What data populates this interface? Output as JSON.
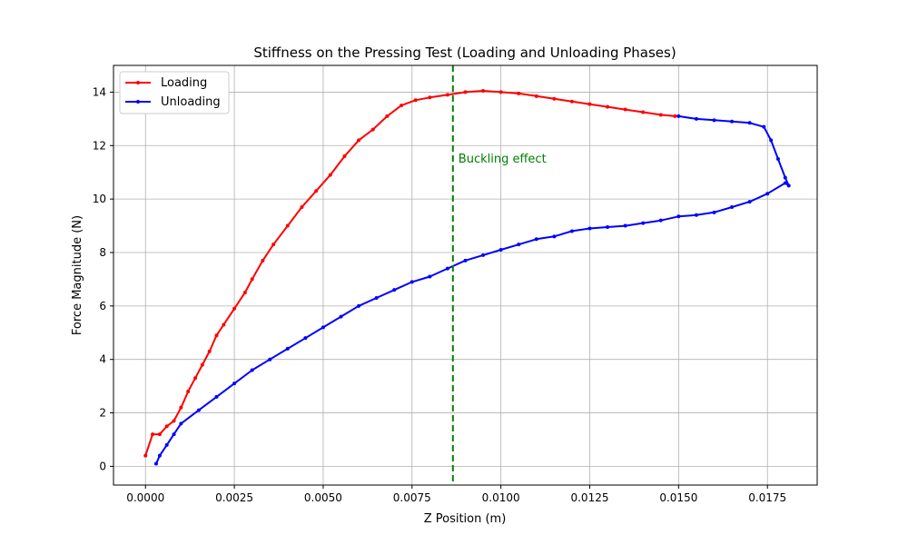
{
  "chart_data": {
    "type": "line",
    "title": "Stiffness on the Pressing Test (Loading and Unloading Phases)",
    "xlabel": "Z Position (m)",
    "ylabel": "Force Magnitude (N)",
    "xlim": [
      -0.0009,
      0.0189
    ],
    "ylim": [
      -0.7,
      15.0
    ],
    "xticks": [
      0.0,
      0.0025,
      0.005,
      0.0075,
      0.01,
      0.0125,
      0.015,
      0.0175
    ],
    "xtick_labels": [
      "0.0000",
      "0.0025",
      "0.0050",
      "0.0075",
      "0.0100",
      "0.0125",
      "0.0150",
      "0.0175"
    ],
    "yticks": [
      0,
      2,
      4,
      6,
      8,
      10,
      12,
      14
    ],
    "ytick_labels": [
      "0",
      "2",
      "4",
      "6",
      "8",
      "10",
      "12",
      "14"
    ],
    "grid": true,
    "legend_position": "top-left",
    "series": [
      {
        "name": "Loading",
        "color": "#ff0000",
        "points": [
          [
            0.0,
            0.4
          ],
          [
            0.0002,
            1.2
          ],
          [
            0.0004,
            1.2
          ],
          [
            0.0006,
            1.5
          ],
          [
            0.0008,
            1.7
          ],
          [
            0.001,
            2.2
          ],
          [
            0.0012,
            2.8
          ],
          [
            0.0014,
            3.3
          ],
          [
            0.0016,
            3.8
          ],
          [
            0.0018,
            4.3
          ],
          [
            0.002,
            4.9
          ],
          [
            0.0022,
            5.3
          ],
          [
            0.0025,
            5.9
          ],
          [
            0.0028,
            6.5
          ],
          [
            0.003,
            7.0
          ],
          [
            0.0033,
            7.7
          ],
          [
            0.0036,
            8.3
          ],
          [
            0.004,
            9.0
          ],
          [
            0.0044,
            9.7
          ],
          [
            0.0048,
            10.3
          ],
          [
            0.0052,
            10.9
          ],
          [
            0.0056,
            11.6
          ],
          [
            0.006,
            12.2
          ],
          [
            0.0064,
            12.6
          ],
          [
            0.0068,
            13.1
          ],
          [
            0.0072,
            13.5
          ],
          [
            0.0076,
            13.7
          ],
          [
            0.008,
            13.8
          ],
          [
            0.0085,
            13.9
          ],
          [
            0.009,
            14.0
          ],
          [
            0.0095,
            14.05
          ],
          [
            0.01,
            14.0
          ],
          [
            0.0105,
            13.95
          ],
          [
            0.011,
            13.85
          ],
          [
            0.0115,
            13.75
          ],
          [
            0.012,
            13.65
          ],
          [
            0.0125,
            13.55
          ],
          [
            0.013,
            13.45
          ],
          [
            0.0135,
            13.35
          ],
          [
            0.014,
            13.25
          ],
          [
            0.0145,
            13.15
          ],
          [
            0.0149,
            13.1
          ]
        ]
      },
      {
        "name": "Unloading",
        "color": "#0000ff",
        "points": [
          [
            0.015,
            13.1
          ],
          [
            0.0155,
            13.0
          ],
          [
            0.016,
            12.95
          ],
          [
            0.0165,
            12.9
          ],
          [
            0.017,
            12.85
          ],
          [
            0.0174,
            12.7
          ],
          [
            0.0176,
            12.2
          ],
          [
            0.0178,
            11.5
          ],
          [
            0.018,
            10.8
          ],
          [
            0.0181,
            10.5
          ],
          [
            0.018,
            10.6
          ],
          [
            0.0175,
            10.2
          ],
          [
            0.017,
            9.9
          ],
          [
            0.0165,
            9.7
          ],
          [
            0.016,
            9.5
          ],
          [
            0.0155,
            9.4
          ],
          [
            0.015,
            9.35
          ],
          [
            0.0145,
            9.2
          ],
          [
            0.014,
            9.1
          ],
          [
            0.0135,
            9.0
          ],
          [
            0.013,
            8.95
          ],
          [
            0.0125,
            8.9
          ],
          [
            0.012,
            8.8
          ],
          [
            0.0115,
            8.6
          ],
          [
            0.011,
            8.5
          ],
          [
            0.0105,
            8.3
          ],
          [
            0.01,
            8.1
          ],
          [
            0.0095,
            7.9
          ],
          [
            0.009,
            7.7
          ],
          [
            0.0085,
            7.4
          ],
          [
            0.008,
            7.1
          ],
          [
            0.0075,
            6.9
          ],
          [
            0.007,
            6.6
          ],
          [
            0.0065,
            6.3
          ],
          [
            0.006,
            6.0
          ],
          [
            0.0055,
            5.6
          ],
          [
            0.005,
            5.2
          ],
          [
            0.0045,
            4.8
          ],
          [
            0.004,
            4.4
          ],
          [
            0.0035,
            4.0
          ],
          [
            0.003,
            3.6
          ],
          [
            0.0025,
            3.1
          ],
          [
            0.002,
            2.6
          ],
          [
            0.0015,
            2.1
          ],
          [
            0.001,
            1.6
          ],
          [
            0.0008,
            1.2
          ],
          [
            0.0006,
            0.8
          ],
          [
            0.0004,
            0.4
          ],
          [
            0.0003,
            0.1
          ]
        ]
      }
    ],
    "annotations": [
      {
        "type": "vline",
        "x": 0.00865,
        "color": "#008000",
        "style": "dashed",
        "label": "Buckling effect",
        "label_y": 11.5
      }
    ]
  }
}
